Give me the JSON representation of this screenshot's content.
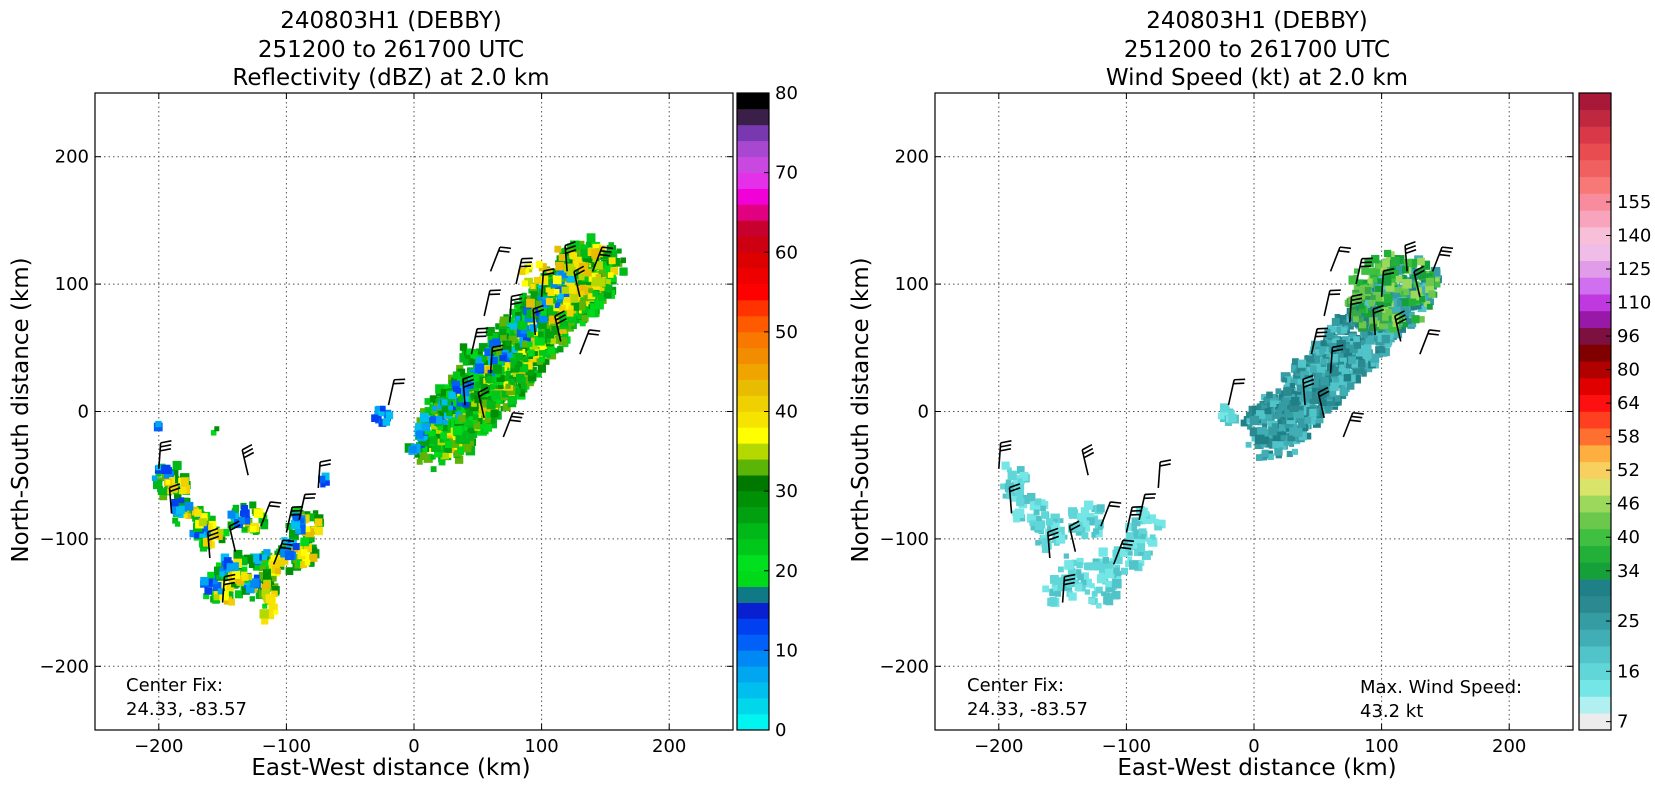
{
  "panels": [
    {
      "title_lines": [
        "240803H1 (DEBBY)",
        "251200 to 261700 UTC",
        "Reflectivity (dBZ) at 2.0 km"
      ],
      "xlabel": "East-West distance (km)",
      "ylabel": "North-South distance (km)",
      "center_fix_lines": [
        "Center Fix:",
        "24.33, -83.57"
      ],
      "colorbar": {
        "min": 0,
        "max": 80,
        "tick_values": [
          0,
          10,
          20,
          30,
          40,
          50,
          60,
          70,
          80
        ],
        "tick_labels": [
          "0",
          "10",
          "20",
          "30",
          "40",
          "50",
          "60",
          "70",
          "80"
        ],
        "colors": [
          "#00f5f0",
          "#00d7ea",
          "#00bfef",
          "#00a7f0",
          "#0088f5",
          "#0060f8",
          "#0040f0",
          "#0820d0",
          "#0f7a85",
          "#00d81a",
          "#00e01e",
          "#00c81a",
          "#00b818",
          "#00a010",
          "#009006",
          "#007800",
          "#5cb406",
          "#b4d800",
          "#ffff00",
          "#f6e400",
          "#efd000",
          "#e8bc00",
          "#f0a400",
          "#f28c00",
          "#f87800",
          "#ff5a00",
          "#ff3200",
          "#ff0000",
          "#ee0000",
          "#dc0000",
          "#cc0010",
          "#c8002e",
          "#e00080",
          "#f200d8",
          "#e430e8",
          "#c848e0",
          "#a848d0",
          "#7838b0",
          "#3a2048",
          "#000000"
        ]
      }
    },
    {
      "title_lines": [
        "240803H1 (DEBBY)",
        "251200 to 261700 UTC",
        "Wind Speed (kt) at 2.0 km"
      ],
      "xlabel": "East-West distance (km)",
      "ylabel": "North-South distance (km)",
      "center_fix_lines": [
        "Center Fix:",
        "24.33, -83.57"
      ],
      "max_wind_lines": [
        "Max. Wind Speed:",
        "43.2 kt"
      ],
      "colorbar": {
        "tick_labels": [
          "7",
          "16",
          "25",
          "34",
          "40",
          "46",
          "52",
          "58",
          "64",
          "80",
          "96",
          "110",
          "125",
          "140",
          "155"
        ],
        "tick_box_index": [
          0,
          3,
          6,
          9,
          11,
          13,
          15,
          17,
          19,
          21,
          23,
          25,
          27,
          29,
          31
        ],
        "colors": [
          "#ececec",
          "#b0f0f0",
          "#74e6e6",
          "#60d6d8",
          "#50c4c8",
          "#40aeb4",
          "#349ca2",
          "#2a8a90",
          "#208088",
          "#16a03a",
          "#22b038",
          "#40c040",
          "#6cc84c",
          "#9cd85c",
          "#d8e46a",
          "#f8d060",
          "#ffae40",
          "#ff7030",
          "#ff4020",
          "#ff1010",
          "#e00000",
          "#b00000",
          "#800000",
          "#7c1040",
          "#9818a8",
          "#c038e0",
          "#d070f0",
          "#e09ce8",
          "#f0bce8",
          "#f8c0d8",
          "#f8a4bc",
          "#f88c9c",
          "#f87878",
          "#f06060",
          "#e84c50",
          "#d83848",
          "#c02840",
          "#a81838"
        ]
      }
    }
  ],
  "chart_data": [
    {
      "type": "heatmap",
      "title": "240803H1 (DEBBY) / 251200 to 261700 UTC / Reflectivity (dBZ) at 2.0 km",
      "xlabel": "East-West distance (km)",
      "ylabel": "North-South distance (km)",
      "xlim": [
        -250,
        250
      ],
      "ylim": [
        -250,
        250
      ],
      "xticks": [
        -200,
        -100,
        0,
        100,
        200
      ],
      "yticks": [
        -200,
        -100,
        0,
        100,
        200
      ],
      "grid": true,
      "colorbar_range": [
        0,
        80
      ],
      "annotations": [
        "Center Fix:",
        "24.33, -83.57"
      ],
      "echo_regions": [
        {
          "name": "northeast rainband",
          "x_range": [
            0,
            160
          ],
          "y_range": [
            -35,
            155
          ],
          "typical_dbz": [
            15,
            40
          ]
        },
        {
          "name": "southwest rainband",
          "x_range": [
            -200,
            -55
          ],
          "y_range": [
            -165,
            -10
          ],
          "typical_dbz": [
            10,
            40
          ]
        },
        {
          "name": "small echo near center",
          "x_range": [
            -35,
            -15
          ],
          "y_range": [
            -10,
            10
          ],
          "typical_dbz": [
            10,
            20
          ]
        }
      ]
    },
    {
      "type": "heatmap",
      "title": "240803H1 (DEBBY) / 251200 to 261700 UTC / Wind Speed (kt) at 2.0 km",
      "xlabel": "East-West distance (km)",
      "ylabel": "North-South distance (km)",
      "xlim": [
        -250,
        250
      ],
      "ylim": [
        -250,
        250
      ],
      "xticks": [
        -200,
        -100,
        0,
        100,
        200
      ],
      "yticks": [
        -200,
        -100,
        0,
        100,
        200
      ],
      "grid": true,
      "colorbar_ticks": [
        7,
        16,
        25,
        34,
        40,
        46,
        52,
        58,
        64,
        80,
        96,
        110,
        125,
        140,
        155
      ],
      "annotations": [
        "Center Fix:",
        "24.33, -83.57",
        "Max. Wind Speed:",
        "43.2 kt"
      ],
      "max_wind_speed_kt": 43.2,
      "wind_regions": [
        {
          "name": "northeast rainband",
          "x_range": [
            0,
            150
          ],
          "y_range": [
            -25,
            135
          ],
          "typical_kt": [
            20,
            43
          ]
        },
        {
          "name": "southwest rainband",
          "x_range": [
            -200,
            -65
          ],
          "y_range": [
            -165,
            -40
          ],
          "typical_kt": [
            10,
            20
          ]
        }
      ]
    }
  ]
}
